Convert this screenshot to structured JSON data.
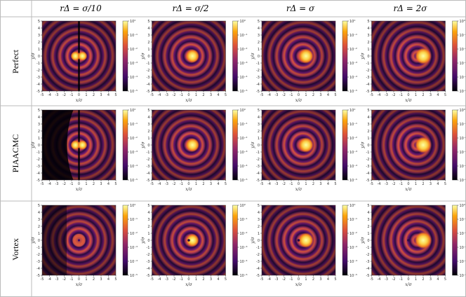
{
  "figure": {
    "column_titles": [
      "rΔ = σ/10",
      "rΔ = σ/2",
      "rΔ = σ",
      "rΔ = 2σ"
    ],
    "row_labels": [
      "Perfect",
      "PIAACMC",
      "Vortex"
    ],
    "x_label": "x/σ",
    "y_label": "y/σ",
    "xlim": [
      -5,
      5
    ],
    "ylim": [
      -5,
      5
    ],
    "xticks": [
      -5,
      -4,
      -3,
      -2,
      -1,
      0,
      1,
      2,
      3,
      4,
      5
    ],
    "yticks": [
      -5,
      -4,
      -3,
      -2,
      -1,
      0,
      1,
      2,
      3,
      4,
      5
    ],
    "colorbar_log": true,
    "colorbar_lim": [
      1e-05,
      1
    ],
    "colorbar_ticks": [
      {
        "value": 1,
        "label": "10⁰"
      },
      {
        "value": 0.1,
        "label": "10⁻¹"
      },
      {
        "value": 0.01,
        "label": "10⁻²"
      },
      {
        "value": 0.001,
        "label": "10⁻³"
      },
      {
        "value": 0.0001,
        "label": "10⁻⁴"
      },
      {
        "value": 1e-05,
        "label": "10⁻⁵"
      }
    ]
  }
}
